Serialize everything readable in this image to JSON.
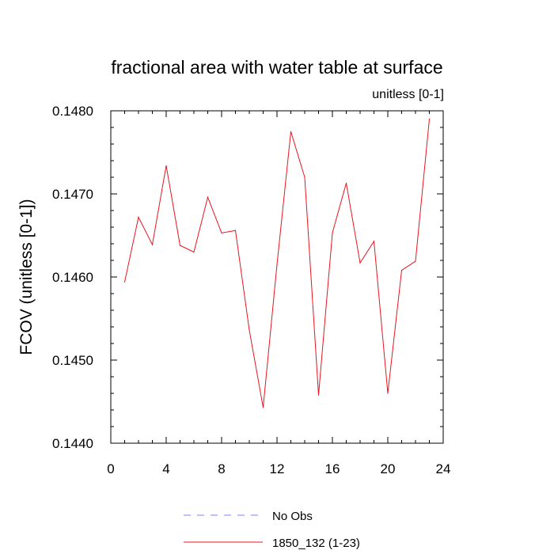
{
  "chart_data": {
    "type": "line",
    "title": "fractional area with water table at surface",
    "subtitle": "unitless [0-1]",
    "xlabel": "",
    "ylabel": "FCOV  (unitless [0-1])",
    "xlim": [
      0,
      24
    ],
    "ylim": [
      0.144,
      0.148
    ],
    "xticks": [
      0,
      4,
      8,
      12,
      16,
      20,
      24
    ],
    "xtick_labels": [
      "0",
      "4",
      "8",
      "12",
      "16",
      "20",
      "24"
    ],
    "yticks": [
      0.144,
      0.145,
      0.146,
      0.147,
      0.148
    ],
    "ytick_labels": [
      "0.1440",
      "0.1450",
      "0.1460",
      "0.1470",
      "0.1480"
    ],
    "grid": false,
    "legend_position": "bottom",
    "series": [
      {
        "name": "1850_132 (1-23)",
        "color": "#e8141e",
        "dash": "solid",
        "x": [
          1,
          2,
          3,
          4,
          5,
          6,
          7,
          8,
          9,
          10,
          11,
          12,
          13,
          14,
          15,
          16,
          17,
          18,
          19,
          20,
          21,
          22,
          23
        ],
        "y": [
          0.14594,
          0.14672,
          0.14639,
          0.14734,
          0.14638,
          0.1463,
          0.14696,
          0.14653,
          0.14656,
          0.14536,
          0.14443,
          0.14615,
          0.14775,
          0.1472,
          0.14458,
          0.14653,
          0.14713,
          0.14617,
          0.14643,
          0.1446,
          0.14608,
          0.14619,
          0.1479
        ]
      }
    ],
    "legend": [
      {
        "label": "No Obs",
        "color": "#8080ff",
        "dash": "dashed"
      },
      {
        "label": "1850_132 (1-23)",
        "color": "#e8141e",
        "dash": "solid"
      }
    ]
  }
}
